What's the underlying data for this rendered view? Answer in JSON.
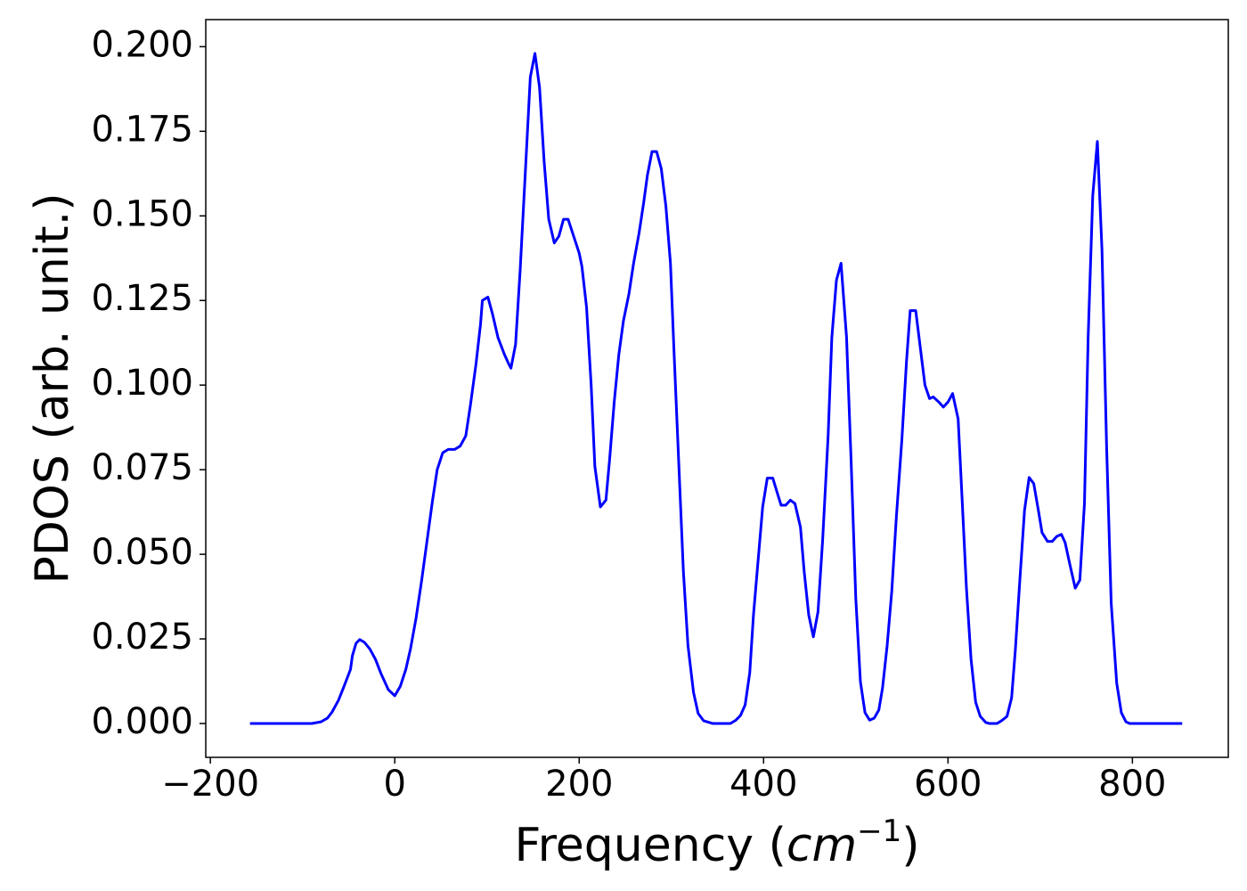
{
  "chart_data": {
    "type": "line",
    "ylabel": "PDOS (arb. unit.)",
    "xlabel": [
      "Frequency (",
      "cm",
      "−1",
      ")"
    ],
    "color": "#0000ff",
    "xlim": [
      -205,
      904
    ],
    "ylim": [
      -0.01,
      0.208
    ],
    "xticks": [
      {
        "value": -200,
        "label": "−200"
      },
      0,
      200,
      400,
      600,
      800
    ],
    "yticks": [
      {
        "value": 0,
        "label": "0.000"
      },
      {
        "value": 0.025,
        "label": "0.025"
      },
      {
        "value": 0.05,
        "label": "0.050"
      },
      {
        "value": 0.075,
        "label": "0.075"
      },
      {
        "value": 0.1,
        "label": "0.100"
      },
      {
        "value": 0.125,
        "label": "0.125"
      },
      {
        "value": 0.15,
        "label": "0.150"
      },
      {
        "value": 0.175,
        "label": "0.175"
      },
      {
        "value": 0.2,
        "label": "0.200"
      }
    ],
    "x": [
      -157,
      -90,
      -80,
      -73,
      -68,
      -61,
      -55,
      -48,
      -46,
      -42,
      -38,
      -33,
      -27,
      -21,
      -15,
      -7,
      0,
      6,
      12,
      17,
      23,
      29,
      35,
      41,
      46,
      52,
      58,
      65,
      71,
      77,
      82,
      88,
      93,
      95,
      101,
      106,
      112,
      119,
      124,
      126,
      131,
      136,
      142,
      147,
      152,
      157,
      162,
      167,
      173,
      178,
      183,
      188,
      194,
      200,
      203,
      208,
      213,
      217,
      223,
      229,
      233,
      238,
      243,
      248,
      254,
      259,
      265,
      270,
      274,
      279,
      284,
      289,
      294,
      299,
      303,
      308,
      313,
      318,
      324,
      329,
      335,
      345,
      364,
      370,
      375,
      380,
      385,
      389,
      394,
      399,
      404,
      410,
      415,
      419,
      424,
      429,
      434,
      440,
      444,
      449,
      454,
      459,
      464,
      470,
      474,
      479,
      484,
      490,
      495,
      500,
      505,
      510,
      515,
      520,
      525,
      529,
      534,
      539,
      544,
      550,
      555,
      559,
      565,
      570,
      575,
      580,
      584,
      590,
      595,
      600,
      605,
      611,
      615,
      620,
      625,
      630,
      635,
      641,
      645,
      653,
      658,
      664,
      669,
      673,
      678,
      683,
      688,
      693,
      698,
      702,
      708,
      713,
      718,
      723,
      727,
      732,
      738,
      743,
      748,
      752,
      757,
      762,
      767,
      772,
      777,
      783,
      788,
      793,
      797,
      854
    ],
    "values": [
      0,
      0,
      0.0005,
      0.0016,
      0.0034,
      0.0069,
      0.011,
      0.016,
      0.02,
      0.0237,
      0.0248,
      0.024,
      0.022,
      0.019,
      0.0148,
      0.01,
      0.0082,
      0.011,
      0.016,
      0.022,
      0.031,
      0.042,
      0.054,
      0.066,
      0.075,
      0.08,
      0.081,
      0.081,
      0.082,
      0.085,
      0.094,
      0.106,
      0.118,
      0.125,
      0.126,
      0.121,
      0.114,
      0.109,
      0.106,
      0.105,
      0.112,
      0.134,
      0.165,
      0.191,
      0.198,
      0.188,
      0.166,
      0.149,
      0.142,
      0.144,
      0.149,
      0.149,
      0.144,
      0.139,
      0.135,
      0.123,
      0.1,
      0.076,
      0.064,
      0.066,
      0.078,
      0.095,
      0.109,
      0.119,
      0.127,
      0.136,
      0.145,
      0.154,
      0.162,
      0.169,
      0.169,
      0.164,
      0.153,
      0.136,
      0.109,
      0.077,
      0.045,
      0.023,
      0.0092,
      0.003,
      0.0008,
      0,
      0,
      0.001,
      0.0024,
      0.0055,
      0.015,
      0.032,
      0.048,
      0.064,
      0.0725,
      0.0725,
      0.068,
      0.0645,
      0.0645,
      0.066,
      0.065,
      0.058,
      0.045,
      0.032,
      0.0256,
      0.033,
      0.054,
      0.085,
      0.114,
      0.131,
      0.136,
      0.114,
      0.077,
      0.037,
      0.0124,
      0.0032,
      0.001,
      0.0016,
      0.004,
      0.0105,
      0.023,
      0.039,
      0.061,
      0.084,
      0.107,
      0.122,
      0.122,
      0.111,
      0.1,
      0.096,
      0.0965,
      0.095,
      0.0935,
      0.095,
      0.0975,
      0.09,
      0.068,
      0.04,
      0.019,
      0.0063,
      0.0021,
      0.0003,
      0,
      0,
      0.0008,
      0.0021,
      0.0076,
      0.0216,
      0.0427,
      0.063,
      0.0727,
      0.0709,
      0.063,
      0.0564,
      0.0538,
      0.0538,
      0.0553,
      0.0559,
      0.0535,
      0.0472,
      0.04,
      0.0424,
      0.065,
      0.114,
      0.156,
      0.172,
      0.14,
      0.082,
      0.0356,
      0.0119,
      0.0032,
      0.0005,
      0,
      0
    ]
  }
}
